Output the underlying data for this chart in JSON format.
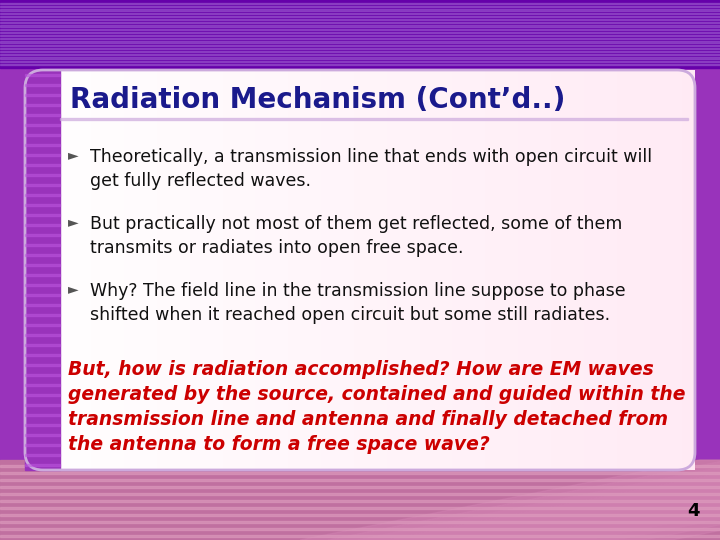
{
  "title": "Radiation Mechanism (Cont’d..)",
  "title_color": "#1A1A8C",
  "title_fontsize": 20,
  "bullet_symbol": "►",
  "bullets": [
    "Theoretically, a transmission line that ends with open circuit will\nget fully reflected waves.",
    "But practically not most of them get reflected, some of them\ntransmits or radiates into open free space.",
    "Why? The field line in the transmission line suppose to phase\nshifted when it reached open circuit but some still radiates."
  ],
  "bullet_fontsize": 12.5,
  "bullet_color": "#111111",
  "red_text_lines": [
    "But, how is radiation accomplished? How are EM waves",
    "generated by the source, contained and guided within the",
    "transmission line and antenna and finally detached from",
    "the antenna to form a free space wave?"
  ],
  "red_text_color": "#CC0000",
  "red_text_fontsize": 13.5,
  "page_number": "4",
  "top_bar_color": "#7700BB",
  "left_stripe_color": "#8833AA",
  "content_bg_left": "#FFFFFF",
  "content_bg_right": "#FFE8F8",
  "bottom_area_color": "#D090B0"
}
